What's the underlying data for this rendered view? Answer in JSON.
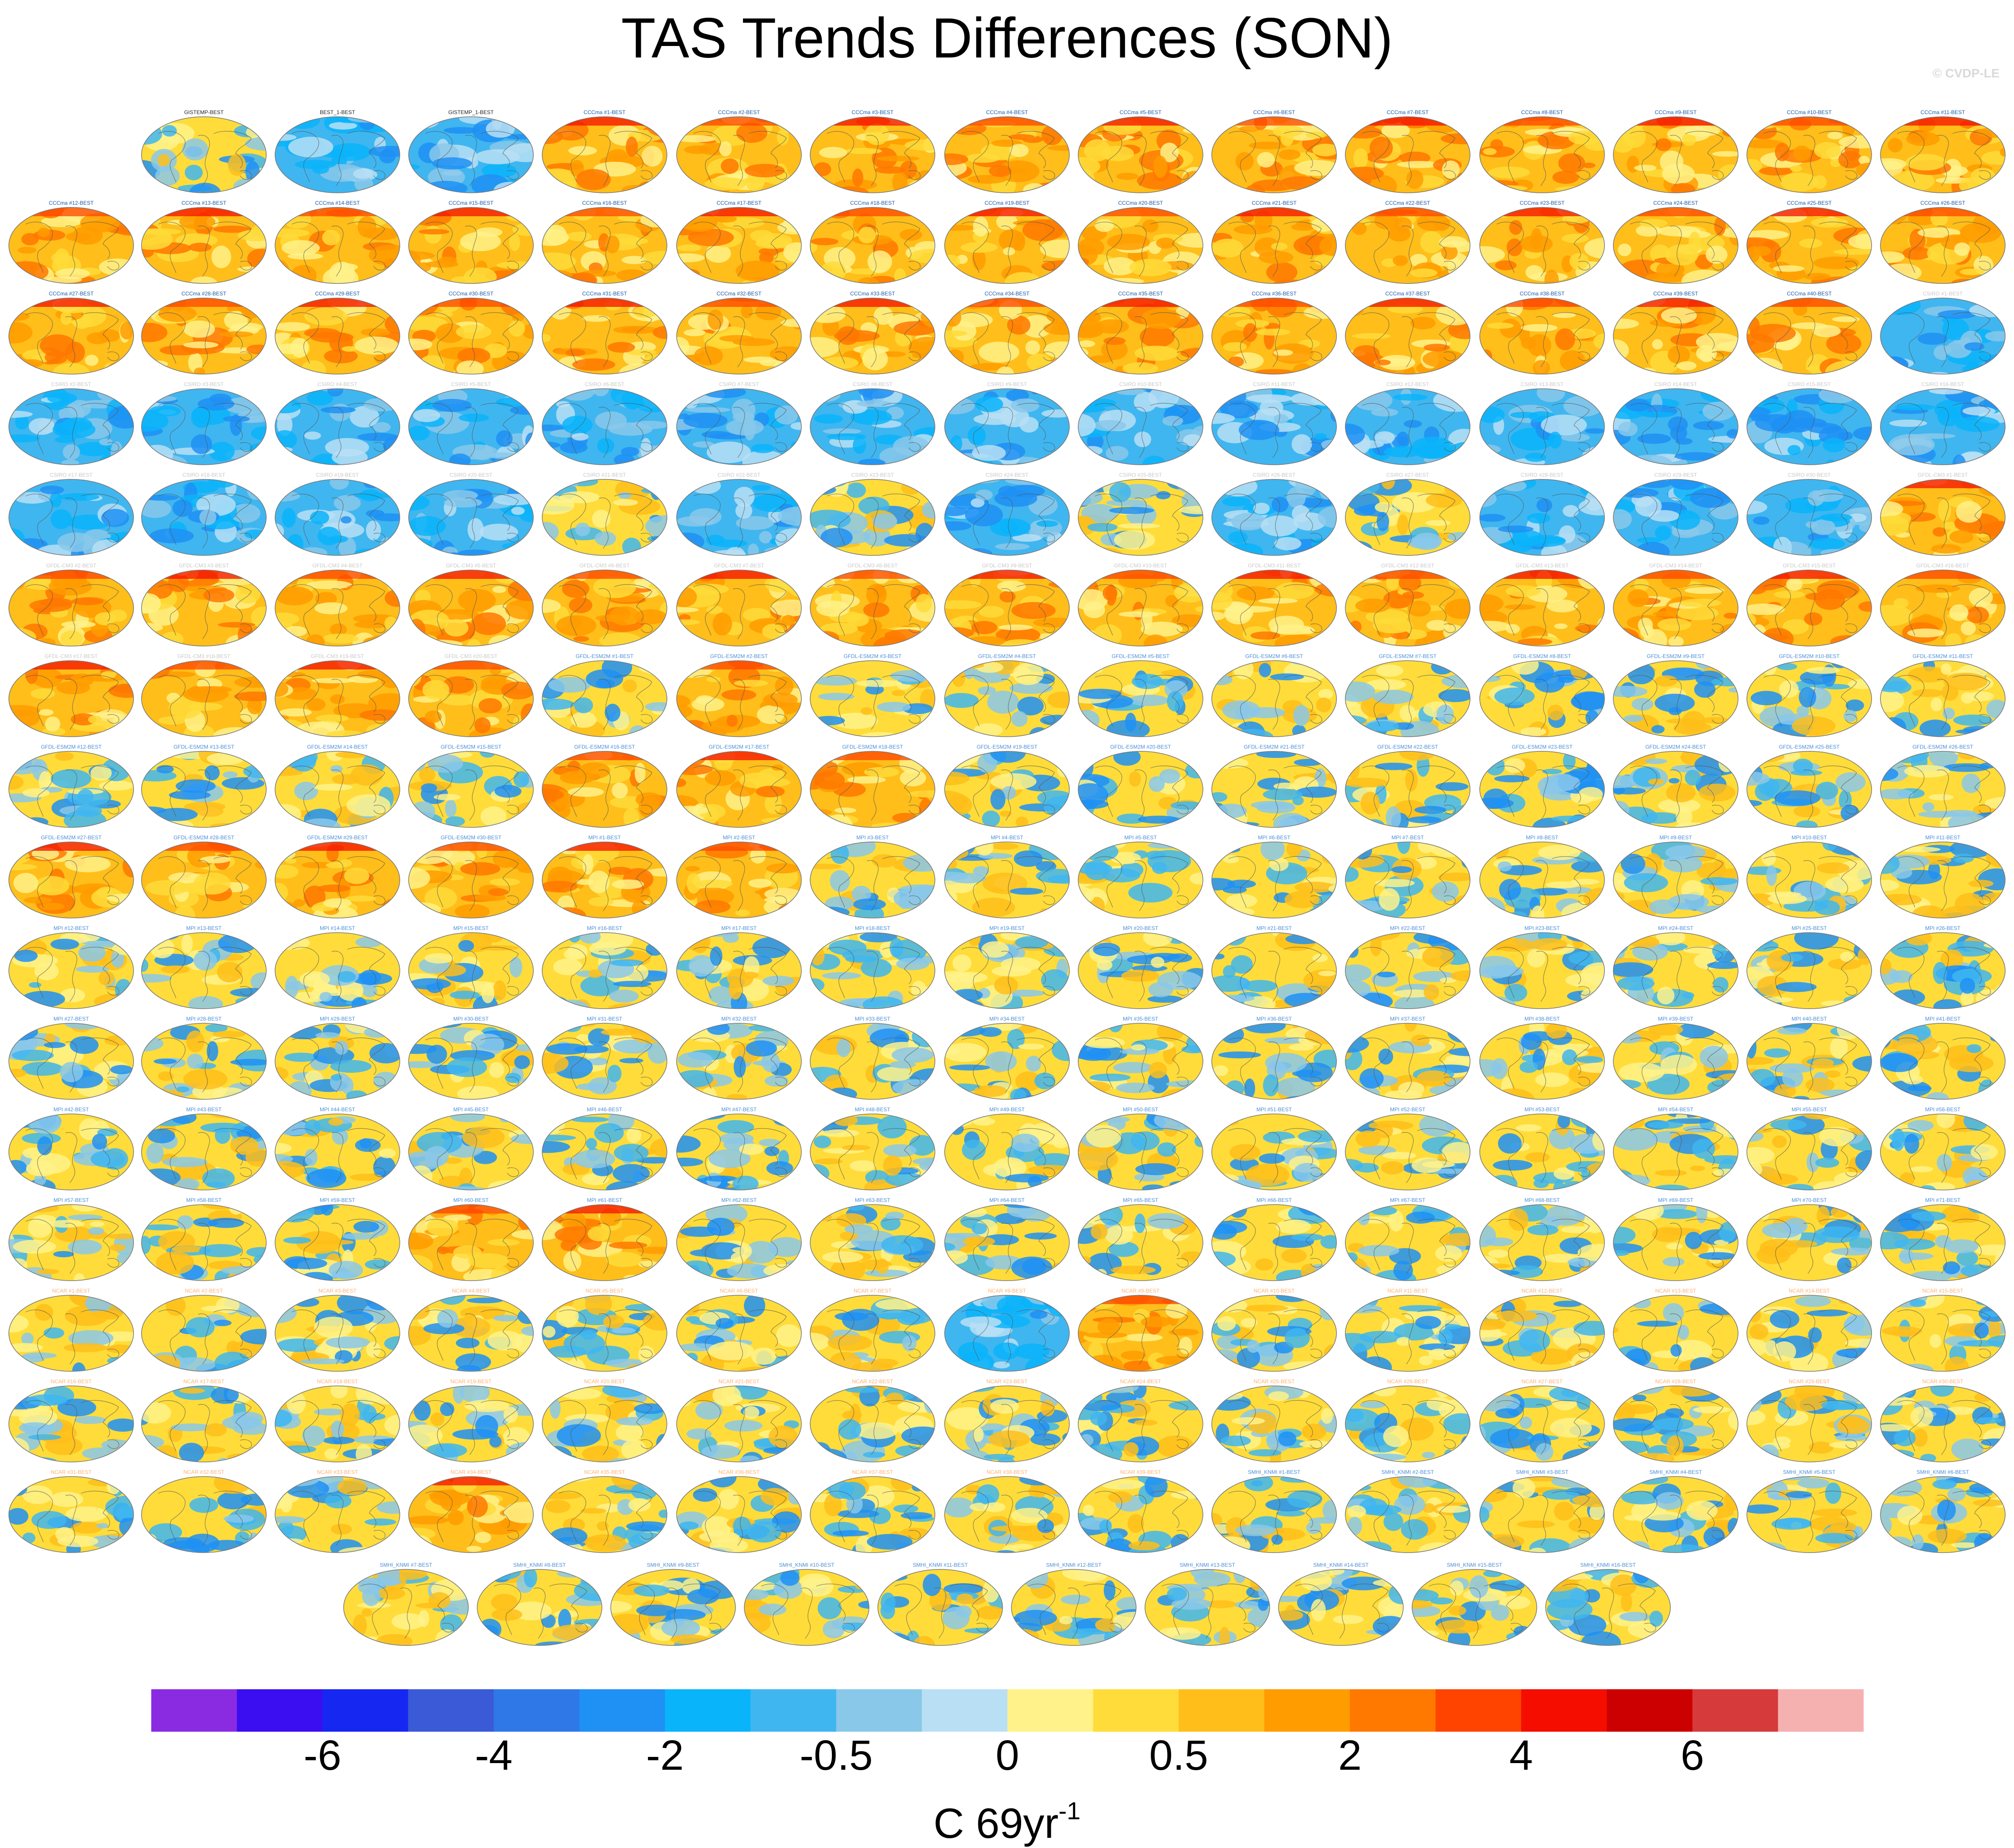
{
  "title": "TAS Trends Differences (SON)",
  "credit": "© CVDP-LE",
  "chart_data": {
    "type": "heatmap",
    "title": "TAS Trends Differences (SON)",
    "description_type": "grid of global map panels",
    "panels_rows": [
      [
        "GISTEMP-BEST",
        "BEST_1-BEST",
        "GISTEMP_1-BEST",
        "CCCma #1-BEST",
        "CCCma #2-BEST",
        "CCCma #3-BEST",
        "CCCma #4-BEST",
        "CCCma #5-BEST",
        "CCCma #6-BEST",
        "CCCma #7-BEST",
        "CCCma #8-BEST",
        "CCCma #9-BEST",
        "CCCma #10-BEST",
        "CCCma #11-BEST"
      ],
      [
        "CCCma #12-BEST",
        "CCCma #13-BEST",
        "CCCma #14-BEST",
        "CCCma #15-BEST",
        "CCCma #16-BEST",
        "CCCma #17-BEST",
        "CCCma #18-BEST",
        "CCCma #19-BEST",
        "CCCma #20-BEST",
        "CCCma #21-BEST",
        "CCCma #22-BEST",
        "CCCma #23-BEST",
        "CCCma #24-BEST",
        "CCCma #25-BEST",
        "CCCma #26-BEST"
      ],
      [
        "CCCma #27-BEST",
        "CCCma #28-BEST",
        "CCCma #29-BEST",
        "CCCma #30-BEST",
        "CCCma #31-BEST",
        "CCCma #32-BEST",
        "CCCma #33-BEST",
        "CCCma #34-BEST",
        "CCCma #35-BEST",
        "CCCma #36-BEST",
        "CCCma #37-BEST",
        "CCCma #38-BEST",
        "CCCma #39-BEST",
        "CCCma #40-BEST",
        "CSIRO #1-BEST"
      ],
      [
        "CSIRO #2-BEST",
        "CSIRO #3-BEST",
        "CSIRO #4-BEST",
        "CSIRO #5-BEST",
        "CSIRO #6-BEST",
        "CSIRO #7-BEST",
        "CSIRO #8-BEST",
        "CSIRO #9-BEST",
        "CSIRO #10-BEST",
        "CSIRO #11-BEST",
        "CSIRO #12-BEST",
        "CSIRO #13-BEST",
        "CSIRO #14-BEST",
        "CSIRO #15-BEST",
        "CSIRO #16-BEST"
      ],
      [
        "CSIRO #17-BEST",
        "CSIRO #18-BEST",
        "CSIRO #19-BEST",
        "CSIRO #20-BEST",
        "CSIRO #21-BEST",
        "CSIRO #22-BEST",
        "CSIRO #23-BEST",
        "CSIRO #24-BEST",
        "CSIRO #25-BEST",
        "CSIRO #26-BEST",
        "CSIRO #27-BEST",
        "CSIRO #28-BEST",
        "CSIRO #29-BEST",
        "CSIRO #30-BEST",
        "GFDL-CM3 #1-BEST"
      ],
      [
        "GFDL-CM3 #2-BEST",
        "GFDL-CM3 #3-BEST",
        "GFDL-CM3 #4-BEST",
        "GFDL-CM3 #5-BEST",
        "GFDL-CM3 #6-BEST",
        "GFDL-CM3 #7-BEST",
        "GFDL-CM3 #8-BEST",
        "GFDL-CM3 #9-BEST",
        "GFDL-CM3 #10-BEST",
        "GFDL-CM3 #11-BEST",
        "GFDL-CM3 #12-BEST",
        "GFDL-CM3 #13-BEST",
        "GFDL-CM3 #14-BEST",
        "GFDL-CM3 #15-BEST",
        "GFDL-CM3 #16-BEST"
      ],
      [
        "GFDL-CM3 #17-BEST",
        "GFDL-CM3 #18-BEST",
        "GFDL-CM3 #19-BEST",
        "GFDL-CM3 #20-BEST",
        "GFDL-ESM2M #1-BEST",
        "GFDL-ESM2M #2-BEST",
        "GFDL-ESM2M #3-BEST",
        "GFDL-ESM2M #4-BEST",
        "GFDL-ESM2M #5-BEST",
        "GFDL-ESM2M #6-BEST",
        "GFDL-ESM2M #7-BEST",
        "GFDL-ESM2M #8-BEST",
        "GFDL-ESM2M #9-BEST",
        "GFDL-ESM2M #10-BEST",
        "GFDL-ESM2M #11-BEST"
      ],
      [
        "GFDL-ESM2M #12-BEST",
        "GFDL-ESM2M #13-BEST",
        "GFDL-ESM2M #14-BEST",
        "GFDL-ESM2M #15-BEST",
        "GFDL-ESM2M #16-BEST",
        "GFDL-ESM2M #17-BEST",
        "GFDL-ESM2M #18-BEST",
        "GFDL-ESM2M #19-BEST",
        "GFDL-ESM2M #20-BEST",
        "GFDL-ESM2M #21-BEST",
        "GFDL-ESM2M #22-BEST",
        "GFDL-ESM2M #23-BEST",
        "GFDL-ESM2M #24-BEST",
        "GFDL-ESM2M #25-BEST",
        "GFDL-ESM2M #26-BEST"
      ],
      [
        "GFDL-ESM2M #27-BEST",
        "GFDL-ESM2M #28-BEST",
        "GFDL-ESM2M #29-BEST",
        "GFDL-ESM2M #30-BEST",
        "MPI #1-BEST",
        "MPI #2-BEST",
        "MPI #3-BEST",
        "MPI #4-BEST",
        "MPI #5-BEST",
        "MPI #6-BEST",
        "MPI #7-BEST",
        "MPI #8-BEST",
        "MPI #9-BEST",
        "MPI #10-BEST",
        "MPI #11-BEST"
      ],
      [
        "MPI #12-BEST",
        "MPI #13-BEST",
        "MPI #14-BEST",
        "MPI #15-BEST",
        "MPI #16-BEST",
        "MPI #17-BEST",
        "MPI #18-BEST",
        "MPI #19-BEST",
        "MPI #20-BEST",
        "MPI #21-BEST",
        "MPI #22-BEST",
        "MPI #23-BEST",
        "MPI #24-BEST",
        "MPI #25-BEST",
        "MPI #26-BEST"
      ],
      [
        "MPI #27-BEST",
        "MPI #28-BEST",
        "MPI #29-BEST",
        "MPI #30-BEST",
        "MPI #31-BEST",
        "MPI #32-BEST",
        "MPI #33-BEST",
        "MPI #34-BEST",
        "MPI #35-BEST",
        "MPI #36-BEST",
        "MPI #37-BEST",
        "MPI #38-BEST",
        "MPI #39-BEST",
        "MPI #40-BEST",
        "MPI #41-BEST"
      ],
      [
        "MPI #42-BEST",
        "MPI #43-BEST",
        "MPI #44-BEST",
        "MPI #45-BEST",
        "MPI #46-BEST",
        "MPI #47-BEST",
        "MPI #48-BEST",
        "MPI #49-BEST",
        "MPI #50-BEST",
        "MPI #51-BEST",
        "MPI #52-BEST",
        "MPI #53-BEST",
        "MPI #54-BEST",
        "MPI #55-BEST",
        "MPI #56-BEST"
      ],
      [
        "MPI #57-BEST",
        "MPI #58-BEST",
        "MPI #59-BEST",
        "MPI #60-BEST",
        "MPI #61-BEST",
        "MPI #62-BEST",
        "MPI #63-BEST",
        "MPI #64-BEST",
        "MPI #65-BEST",
        "MPI #66-BEST",
        "MPI #67-BEST",
        "MPI #68-BEST",
        "MPI #69-BEST",
        "MPI #70-BEST",
        "MPI #71-BEST"
      ],
      [
        "NCAR #1-BEST",
        "NCAR #2-BEST",
        "NCAR #3-BEST",
        "NCAR #4-BEST",
        "NCAR #5-BEST",
        "NCAR #6-BEST",
        "NCAR #7-BEST",
        "NCAR #8-BEST",
        "NCAR #9-BEST",
        "NCAR #10-BEST",
        "NCAR #11-BEST",
        "NCAR #12-BEST",
        "NCAR #13-BEST",
        "NCAR #14-BEST",
        "NCAR #15-BEST"
      ],
      [
        "NCAR #16-BEST",
        "NCAR #17-BEST",
        "NCAR #18-BEST",
        "NCAR #19-BEST",
        "NCAR #20-BEST",
        "NCAR #21-BEST",
        "NCAR #22-BEST",
        "NCAR #23-BEST",
        "NCAR #24-BEST",
        "NCAR #25-BEST",
        "NCAR #26-BEST",
        "NCAR #27-BEST",
        "NCAR #28-BEST",
        "NCAR #29-BEST",
        "NCAR #30-BEST"
      ],
      [
        "NCAR #31-BEST",
        "NCAR #32-BEST",
        "NCAR #33-BEST",
        "NCAR #34-BEST",
        "NCAR #35-BEST",
        "NCAR #36-BEST",
        "NCAR #37-BEST",
        "NCAR #38-BEST",
        "NCAR #39-BEST",
        "SMHI_KNMI #1-BEST",
        "SMHI_KNMI #2-BEST",
        "SMHI_KNMI #3-BEST",
        "SMHI_KNMI #4-BEST",
        "SMHI_KNMI #5-BEST",
        "SMHI_KNMI #6-BEST"
      ],
      [
        "SMHI_KNMI #7-BEST",
        "SMHI_KNMI #8-BEST",
        "SMHI_KNMI #9-BEST",
        "SMHI_KNMI #10-BEST",
        "SMHI_KNMI #11-BEST",
        "SMHI_KNMI #12-BEST",
        "SMHI_KNMI #13-BEST",
        "SMHI_KNMI #14-BEST",
        "SMHI_KNMI #15-BEST",
        "SMHI_KNMI #16-BEST"
      ]
    ],
    "panel_tone_rows": [
      [
        "mixed",
        "cool",
        "cool",
        "warm",
        "warm",
        "warm",
        "warm",
        "warm",
        "warm",
        "warm",
        "warm",
        "warm",
        "warm",
        "warm"
      ],
      [
        "warm",
        "warm",
        "warm",
        "warm",
        "warm",
        "warm",
        "warm",
        "warm",
        "warm",
        "warm",
        "warm",
        "warm",
        "warm",
        "warm",
        "warm"
      ],
      [
        "warm",
        "warm",
        "warm",
        "warm",
        "warm",
        "warm",
        "warm",
        "warm",
        "warm",
        "warm",
        "warm",
        "warm",
        "warm",
        "warm",
        "cool"
      ],
      [
        "cool",
        "cool",
        "cool",
        "cool",
        "cool",
        "cool",
        "cool",
        "cool",
        "cool",
        "cool",
        "cool",
        "cool",
        "cool",
        "cool",
        "cool"
      ],
      [
        "cool",
        "cool",
        "cool",
        "cool",
        "mixed",
        "cool",
        "mixed",
        "cool",
        "mixed",
        "cool",
        "mixed",
        "cool",
        "cool",
        "cool",
        "warm"
      ],
      [
        "warm",
        "warm",
        "warm",
        "warm",
        "warm",
        "warm",
        "warm",
        "warm",
        "warm",
        "warm",
        "warm",
        "warm",
        "warm",
        "warm",
        "warm"
      ],
      [
        "warm",
        "warm",
        "warm",
        "warm",
        "mixed",
        "warm",
        "mixed",
        "mixed",
        "mixed",
        "mixed",
        "mixed",
        "mixed",
        "mixed",
        "mixed",
        "mixed"
      ],
      [
        "mixed",
        "mixed",
        "mixed",
        "mixed",
        "warm",
        "warm",
        "warm",
        "mixed",
        "mixed",
        "mixed",
        "mixed",
        "mixed",
        "mixed",
        "mixed",
        "mixed"
      ],
      [
        "warm",
        "warm",
        "warm",
        "warm",
        "warm",
        "warm",
        "mixed",
        "mixed",
        "mixed",
        "mixed",
        "mixed",
        "mixed",
        "mixed",
        "mixed",
        "mixed"
      ],
      [
        "mixed",
        "mixed",
        "mixed",
        "mixed",
        "mixed",
        "mixed",
        "mixed",
        "mixed",
        "mixed",
        "mixed",
        "mixed",
        "mixed",
        "mixed",
        "mixed",
        "mixed"
      ],
      [
        "mixed",
        "mixed",
        "mixed",
        "mixed",
        "mixed",
        "mixed",
        "mixed",
        "mixed",
        "mixed",
        "mixed",
        "mixed",
        "mixed",
        "mixed",
        "mixed",
        "mixed"
      ],
      [
        "mixed",
        "mixed",
        "mixed",
        "mixed",
        "mixed",
        "mixed",
        "mixed",
        "mixed",
        "mixed",
        "mixed",
        "mixed",
        "mixed",
        "mixed",
        "mixed",
        "mixed"
      ],
      [
        "mixed",
        "mixed",
        "mixed",
        "warm",
        "warm",
        "mixed",
        "mixed",
        "mixed",
        "mixed",
        "mixed",
        "mixed",
        "mixed",
        "mixed",
        "mixed",
        "mixed"
      ],
      [
        "mixed",
        "mixed",
        "mixed",
        "mixed",
        "mixed",
        "mixed",
        "mixed",
        "cool",
        "warm",
        "mixed",
        "mixed",
        "mixed",
        "mixed",
        "mixed",
        "mixed"
      ],
      [
        "mixed",
        "mixed",
        "mixed",
        "mixed",
        "mixed",
        "mixed",
        "mixed",
        "mixed",
        "mixed",
        "mixed",
        "mixed",
        "mixed",
        "mixed",
        "mixed",
        "mixed"
      ],
      [
        "mixed",
        "mixed",
        "mixed",
        "warm",
        "mixed",
        "mixed",
        "mixed",
        "mixed",
        "mixed",
        "mixed",
        "mixed",
        "mixed",
        "mixed",
        "mixed",
        "mixed"
      ],
      [
        "mixed",
        "mixed",
        "mixed",
        "mixed",
        "mixed",
        "mixed",
        "mixed",
        "mixed",
        "mixed",
        "mixed"
      ]
    ],
    "colorbar": {
      "colors": [
        "#8a2be2",
        "#3a0ef0",
        "#1727f2",
        "#3a5ad8",
        "#2f78e8",
        "#1f90f4",
        "#0ab4fa",
        "#3fb6f0",
        "#8ac8ea",
        "#b9dff4",
        "#fff28a",
        "#ffdc3a",
        "#ffbe1a",
        "#ff9c00",
        "#ff7800",
        "#ff4400",
        "#f50d00",
        "#cc0000",
        "#d63a3a",
        "#f5b0b0"
      ],
      "tick_labels": [
        "-6",
        "-4",
        "-2",
        "-0.5",
        "0",
        "0.5",
        "2",
        "4",
        "6"
      ],
      "tick_boundaries": [
        2,
        4,
        6,
        8,
        10,
        12,
        14,
        16,
        18
      ],
      "units": "C 69yr",
      "units_exponent": "-1"
    }
  }
}
